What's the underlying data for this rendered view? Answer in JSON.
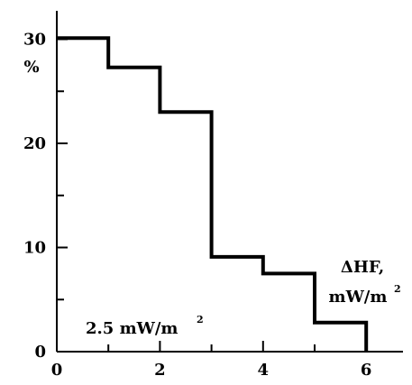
{
  "chart_data": {
    "type": "line",
    "step": true,
    "x": [
      0,
      1,
      1,
      2,
      2,
      3,
      3,
      4,
      4,
      5,
      5,
      6,
      6
    ],
    "y": [
      30.1,
      30.1,
      27.3,
      27.3,
      23.0,
      23.0,
      9.1,
      9.1,
      7.5,
      7.5,
      2.8,
      2.8,
      0
    ],
    "xlim": [
      0,
      6.8
    ],
    "ylim": [
      0,
      33
    ],
    "x_ticks": [
      0,
      2,
      4,
      6
    ],
    "y_ticks": [
      0,
      10,
      20,
      30
    ],
    "x_tick_labels": [
      "0",
      "2",
      "4",
      "6"
    ],
    "y_tick_labels": [
      "0",
      "10",
      "20",
      "30"
    ],
    "ylabel": "%",
    "xlabel_line1": "ΔHF,",
    "xlabel_line2": "mW/m",
    "xlabel_sup": "2",
    "annotation": "2.5 mW/m",
    "annotation_sup": "2",
    "grid": false,
    "line_color": "#000000"
  }
}
